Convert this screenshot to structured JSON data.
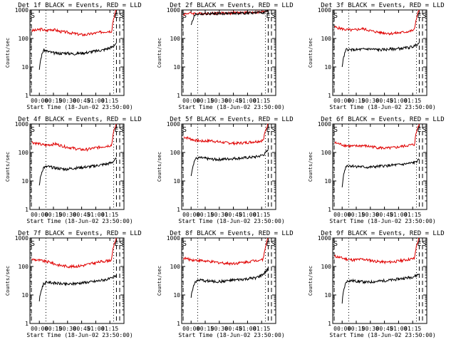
{
  "figure": {
    "type": "multi-panel detector count-rate plots",
    "grid": "3x3",
    "background": "#ffffff"
  },
  "colors": {
    "events": "#000000",
    "lld": "#e00000",
    "axes": "#000000"
  },
  "chart_data": [
    {
      "type": "line",
      "title": "Det 1f BLACK = Events, RED = LLD",
      "xlabel": "Start Time (18-Jun-02 23:50:00)",
      "ylabel": "Counts/sec",
      "y_scale": "log",
      "ylim": [
        1,
        1000
      ],
      "y_ticks": [
        "1",
        "10",
        "100",
        "1000"
      ],
      "x_ticks": [
        "00:00",
        "00:15",
        "00:30",
        "00:45",
        "01:00",
        "01:15"
      ],
      "markers": [
        {
          "label": "S",
          "at": "23:50"
        },
        {
          "label": "E",
          "at": "01:11"
        },
        {
          "label": "S",
          "at": "01:13"
        }
      ],
      "series": [
        {
          "values": [
            190,
            195,
            215,
            185,
            210,
            200,
            175,
            170,
            160,
            150,
            140,
            135,
            140,
            150,
            160,
            170,
            180,
            180,
            1000
          ]
        },
        {
          "values": [
            8,
            40,
            35,
            32,
            30,
            30,
            31,
            30,
            29,
            30,
            31,
            32,
            34,
            36,
            38,
            40,
            45,
            50,
            70
          ]
        }
      ]
    },
    {
      "type": "line",
      "title": "Det 2f BLACK = Events, RED = LLD",
      "xlabel": "Start Time (18-Jun-02 23:50:00)",
      "ylabel": "Counts/sec",
      "y_scale": "log",
      "ylim": [
        1,
        1000
      ],
      "y_ticks": [
        "1",
        "10",
        "100",
        "1000"
      ],
      "x_ticks": [
        "00:00",
        "00:15",
        "00:30",
        "00:45",
        "01:00",
        "01:15"
      ],
      "markers": [
        {
          "label": "S",
          "at": "23:50"
        },
        {
          "label": "E",
          "at": "01:11"
        },
        {
          "label": "S",
          "at": "01:13"
        }
      ],
      "series": [
        {
          "values": [
            700,
            780,
            760,
            750,
            755,
            760,
            765,
            770,
            775,
            780,
            785,
            790,
            800,
            805,
            810,
            820,
            830,
            850,
            1000
          ]
        },
        {
          "values": [
            300,
            700,
            720,
            730,
            735,
            740,
            745,
            750,
            755,
            760,
            765,
            770,
            775,
            780,
            790,
            800,
            810,
            830,
            900
          ]
        }
      ]
    },
    {
      "type": "line",
      "title": "Det 3f BLACK = Events, RED = LLD",
      "xlabel": "Start Time (18-Jun-02 23:50:00)",
      "ylabel": "Counts/sec",
      "y_scale": "log",
      "ylim": [
        1,
        1000
      ],
      "y_ticks": [
        "1",
        "10",
        "100",
        "1000"
      ],
      "x_ticks": [
        "00:00",
        "00:15",
        "00:30",
        "00:45",
        "01:00",
        "01:15"
      ],
      "markers": [
        {
          "label": "S",
          "at": "23:50"
        },
        {
          "label": "E",
          "at": "01:11"
        },
        {
          "label": "S",
          "at": "01:13"
        }
      ],
      "series": [
        {
          "values": [
            250,
            230,
            210,
            200,
            195,
            210,
            220,
            200,
            180,
            170,
            160,
            155,
            150,
            155,
            160,
            170,
            180,
            200,
            1000
          ]
        },
        {
          "values": [
            10,
            42,
            40,
            40,
            41,
            42,
            43,
            42,
            41,
            40,
            41,
            42,
            43,
            44,
            45,
            47,
            50,
            55,
            70
          ]
        }
      ]
    },
    {
      "type": "line",
      "title": "Det 4f BLACK = Events, RED = LLD",
      "xlabel": "Start Time (18-Jun-02 23:50:00)",
      "ylabel": "Counts/sec",
      "y_scale": "log",
      "ylim": [
        1,
        1000
      ],
      "y_ticks": [
        "1",
        "10",
        "100",
        "1000"
      ],
      "x_ticks": [
        "00:00",
        "00:15",
        "00:30",
        "00:45",
        "01:00",
        "01:15"
      ],
      "markers": [
        {
          "label": "S",
          "at": "23:50"
        },
        {
          "label": "E",
          "at": "01:11"
        },
        {
          "label": "S",
          "at": "01:13"
        }
      ],
      "series": [
        {
          "values": [
            230,
            210,
            190,
            180,
            190,
            200,
            180,
            160,
            150,
            140,
            130,
            125,
            130,
            140,
            150,
            160,
            170,
            180,
            1000
          ]
        },
        {
          "values": [
            7,
            30,
            32,
            30,
            28,
            27,
            26,
            27,
            28,
            29,
            30,
            31,
            32,
            34,
            36,
            38,
            40,
            45,
            60
          ]
        }
      ]
    },
    {
      "type": "line",
      "title": "Det 5f BLACK = Events, RED = LLD",
      "xlabel": "Start Time (18-Jun-02 23:50:00)",
      "ylabel": "Counts/sec",
      "y_scale": "log",
      "ylim": [
        1,
        1000
      ],
      "y_ticks": [
        "1",
        "10",
        "100",
        "1000"
      ],
      "x_ticks": [
        "00:00",
        "00:15",
        "00:30",
        "00:45",
        "01:00",
        "01:15"
      ],
      "markers": [
        {
          "label": "S",
          "at": "23:50"
        },
        {
          "label": "E",
          "at": "01:11"
        },
        {
          "label": "S",
          "at": "01:13"
        }
      ],
      "series": [
        {
          "values": [
            350,
            320,
            280,
            260,
            250,
            255,
            260,
            240,
            230,
            220,
            215,
            210,
            215,
            220,
            230,
            240,
            250,
            270,
            1000
          ]
        },
        {
          "values": [
            15,
            60,
            65,
            63,
            60,
            58,
            57,
            58,
            59,
            60,
            62,
            63,
            64,
            66,
            68,
            70,
            75,
            85,
            120
          ]
        }
      ]
    },
    {
      "type": "line",
      "title": "Det 6f BLACK = Events, RED = LLD",
      "xlabel": "Start Time (18-Jun-02 23:50:00)",
      "ylabel": "Counts/sec",
      "y_scale": "log",
      "ylim": [
        1,
        1000
      ],
      "y_ticks": [
        "1",
        "10",
        "100",
        "1000"
      ],
      "x_ticks": [
        "00:00",
        "00:15",
        "00:30",
        "00:45",
        "01:00",
        "01:15"
      ],
      "markers": [
        {
          "label": "S",
          "at": "23:50"
        },
        {
          "label": "E",
          "at": "01:11"
        },
        {
          "label": "S",
          "at": "01:13"
        }
      ],
      "series": [
        {
          "values": [
            220,
            200,
            180,
            170,
            165,
            170,
            175,
            165,
            160,
            150,
            145,
            140,
            145,
            150,
            160,
            170,
            180,
            190,
            1000
          ]
        },
        {
          "values": [
            6,
            35,
            34,
            33,
            32,
            31,
            30,
            31,
            32,
            33,
            34,
            35,
            36,
            37,
            38,
            40,
            42,
            45,
            55
          ]
        }
      ]
    },
    {
      "type": "line",
      "title": "Det 7f BLACK = Events, RED = LLD",
      "xlabel": "Start Time (18-Jun-02 23:50:00)",
      "ylabel": "Counts/sec",
      "y_scale": "log",
      "ylim": [
        1,
        1000
      ],
      "y_ticks": [
        "1",
        "10",
        "100",
        "1000"
      ],
      "x_ticks": [
        "00:00",
        "00:15",
        "00:30",
        "00:45",
        "01:00",
        "01:15"
      ],
      "markers": [
        {
          "label": "S",
          "at": "23:50"
        },
        {
          "label": "E",
          "at": "01:11"
        },
        {
          "label": "S",
          "at": "01:13"
        }
      ],
      "series": [
        {
          "values": [
            180,
            170,
            160,
            150,
            140,
            120,
            110,
            105,
            100,
            100,
            105,
            110,
            120,
            130,
            140,
            150,
            160,
            170,
            1000
          ]
        },
        {
          "values": [
            6,
            25,
            28,
            27,
            26,
            25,
            24,
            24,
            25,
            26,
            27,
            28,
            29,
            30,
            32,
            34,
            36,
            38,
            50
          ]
        }
      ]
    },
    {
      "type": "line",
      "title": "Det 8f BLACK = Events, RED = LLD",
      "xlabel": "Start Time (18-Jun-02 23:50:00)",
      "ylabel": "Counts/sec",
      "y_scale": "log",
      "ylim": [
        1,
        1000
      ],
      "y_ticks": [
        "1",
        "10",
        "100",
        "1000"
      ],
      "x_ticks": [
        "00:00",
        "00:15",
        "00:30",
        "00:45",
        "01:00",
        "01:15"
      ],
      "markers": [
        {
          "label": "S",
          "at": "23:50"
        },
        {
          "label": "E",
          "at": "01:11"
        },
        {
          "label": "S",
          "at": "01:13"
        }
      ],
      "series": [
        {
          "values": [
            200,
            180,
            170,
            165,
            160,
            150,
            145,
            140,
            135,
            130,
            128,
            130,
            135,
            140,
            150,
            160,
            170,
            180,
            1000
          ]
        },
        {
          "values": [
            8,
            30,
            33,
            32,
            31,
            30,
            29,
            30,
            31,
            32,
            33,
            34,
            35,
            36,
            38,
            40,
            45,
            55,
            80
          ]
        }
      ]
    },
    {
      "type": "line",
      "title": "Det 9f BLACK = Events, RED = LLD",
      "xlabel": "Start Time (18-Jun-02 23:50:00)",
      "ylabel": "Counts/sec",
      "y_scale": "log",
      "ylim": [
        1,
        1000
      ],
      "y_ticks": [
        "1",
        "10",
        "100",
        "1000"
      ],
      "x_ticks": [
        "00:00",
        "00:15",
        "00:30",
        "00:45",
        "01:00",
        "01:15"
      ],
      "markers": [
        {
          "label": "S",
          "at": "23:50"
        },
        {
          "label": "E",
          "at": "01:11"
        },
        {
          "label": "S",
          "at": "01:13"
        }
      ],
      "series": [
        {
          "values": [
            230,
            210,
            190,
            175,
            170,
            175,
            180,
            170,
            160,
            150,
            145,
            140,
            145,
            150,
            160,
            170,
            180,
            190,
            1000
          ]
        },
        {
          "values": [
            5,
            30,
            32,
            31,
            30,
            29,
            28,
            29,
            30,
            31,
            32,
            33,
            34,
            36,
            38,
            40,
            42,
            46,
            55
          ]
        }
      ]
    }
  ]
}
